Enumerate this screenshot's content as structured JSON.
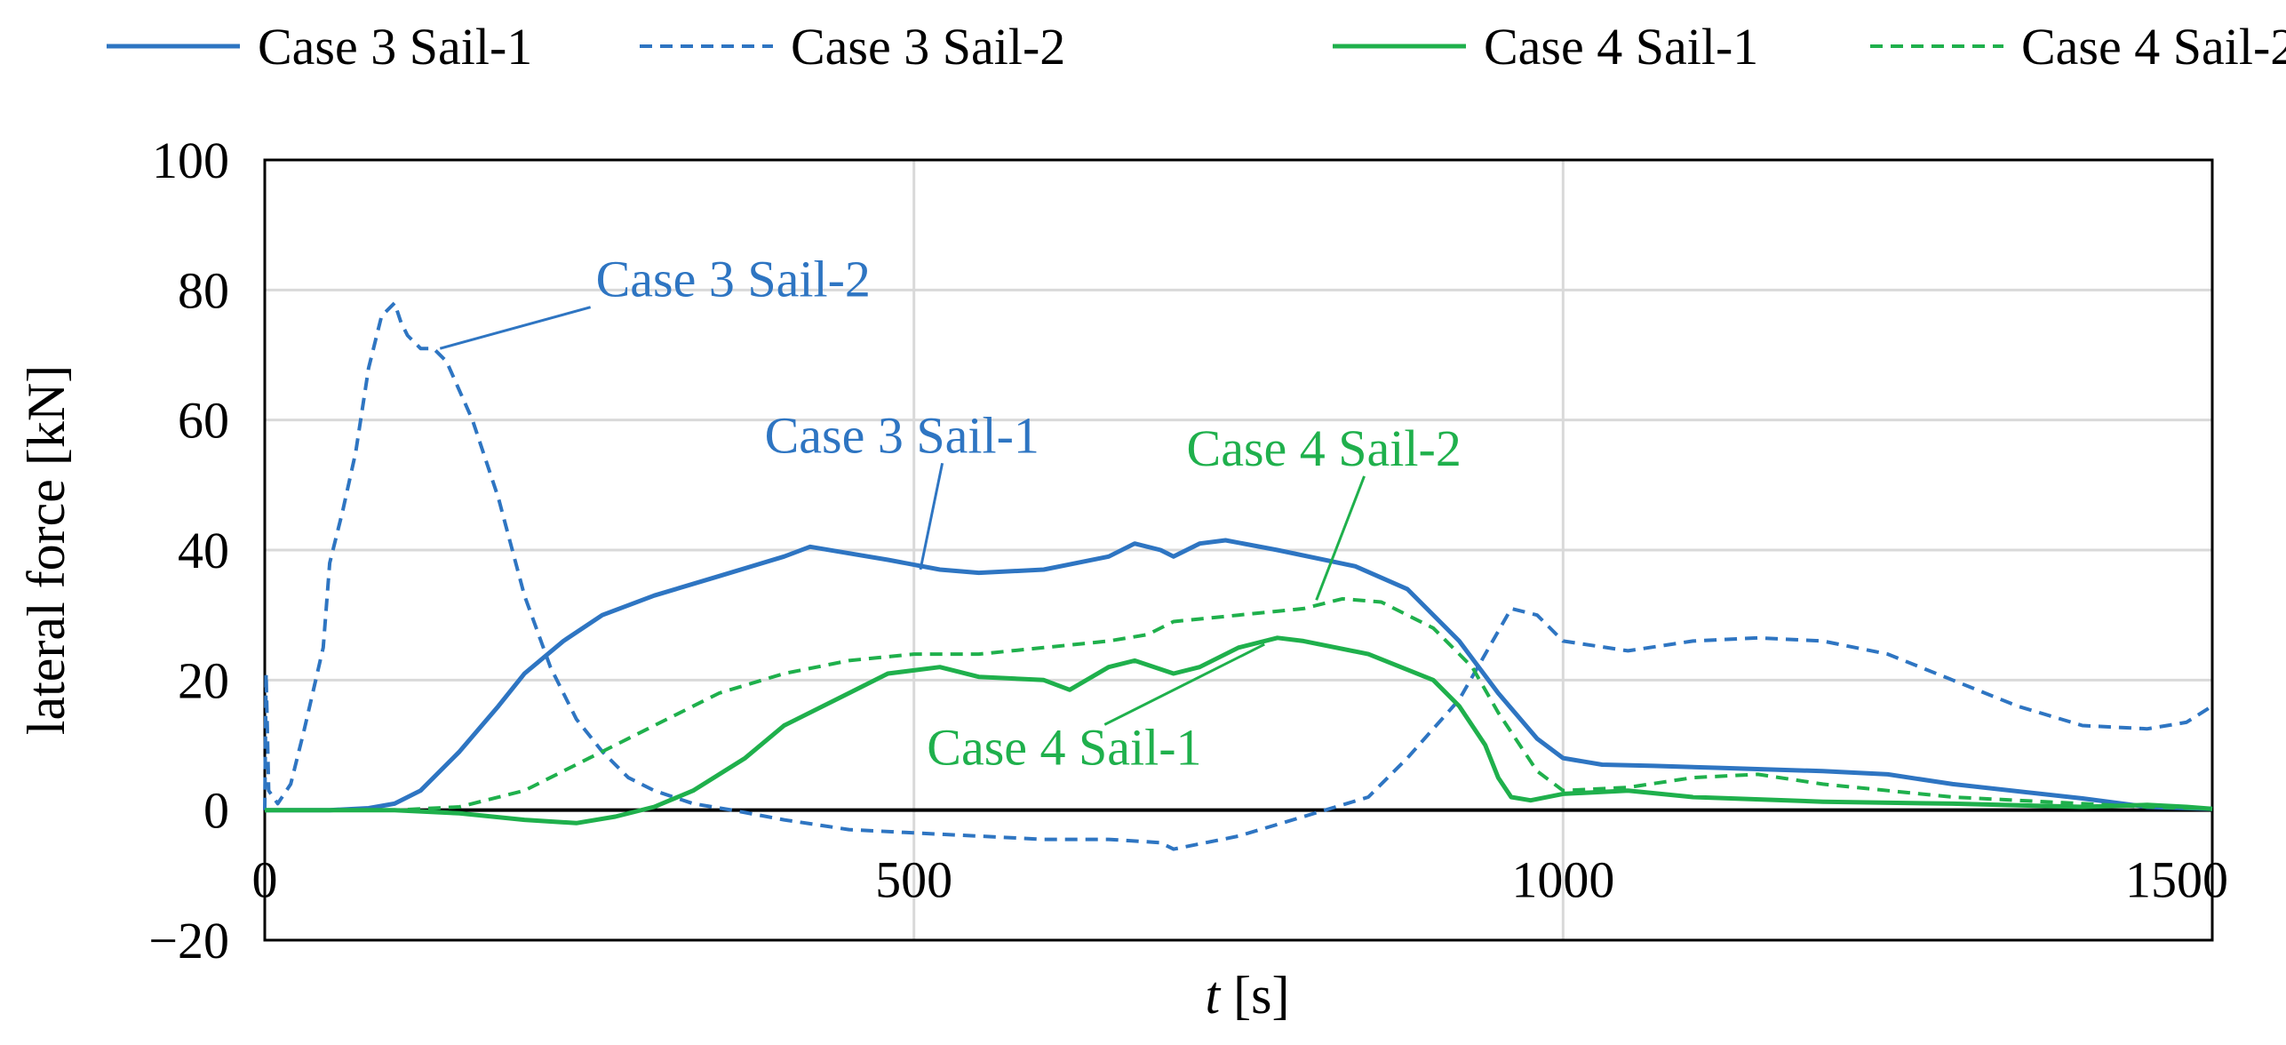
{
  "chart_data": {
    "type": "line",
    "title": "",
    "xlabel_italic": "t",
    "xlabel_rest": " [s]",
    "ylabel": "lateral force [kN]",
    "xlim": [
      0,
      1500
    ],
    "ylim": [
      -20,
      100
    ],
    "xticks": [
      0,
      500,
      1000,
      1500
    ],
    "yticks": [
      -20,
      0,
      20,
      40,
      60,
      80,
      100
    ],
    "xtick_labels": [
      "0",
      "500",
      "1000",
      "1500"
    ],
    "ytick_labels": [
      "−20",
      "0",
      "20",
      "40",
      "60",
      "80",
      "100"
    ],
    "grid": true,
    "legend_position": "top",
    "colors": {
      "blue": "#2e75c2",
      "green": "#1fb04c"
    },
    "series": [
      {
        "name": "Case 3 Sail-1",
        "color": "#2e75c2",
        "dash": "solid",
        "points": [
          [
            0,
            0
          ],
          [
            50,
            0
          ],
          [
            80,
            0.3
          ],
          [
            100,
            1
          ],
          [
            120,
            3
          ],
          [
            150,
            9
          ],
          [
            180,
            16
          ],
          [
            200,
            21
          ],
          [
            230,
            26
          ],
          [
            260,
            30
          ],
          [
            300,
            33
          ],
          [
            350,
            36
          ],
          [
            400,
            39
          ],
          [
            420,
            40.5
          ],
          [
            450,
            39.5
          ],
          [
            480,
            38.5
          ],
          [
            520,
            37
          ],
          [
            550,
            36.5
          ],
          [
            600,
            37
          ],
          [
            650,
            39
          ],
          [
            670,
            41
          ],
          [
            690,
            40
          ],
          [
            700,
            39
          ],
          [
            720,
            41
          ],
          [
            740,
            41.5
          ],
          [
            780,
            40
          ],
          [
            840,
            37.5
          ],
          [
            880,
            34
          ],
          [
            920,
            26
          ],
          [
            950,
            18
          ],
          [
            980,
            11
          ],
          [
            1000,
            8
          ],
          [
            1030,
            7
          ],
          [
            1070,
            6.8
          ],
          [
            1120,
            6.5
          ],
          [
            1200,
            6
          ],
          [
            1250,
            5.5
          ],
          [
            1300,
            4
          ],
          [
            1400,
            1.8
          ],
          [
            1450,
            0.5
          ],
          [
            1500,
            0.2
          ]
        ]
      },
      {
        "name": "Case 3 Sail-2",
        "color": "#2e75c2",
        "dash": "dashed",
        "points": [
          [
            0,
            0
          ],
          [
            1,
            21
          ],
          [
            3,
            3
          ],
          [
            10,
            1
          ],
          [
            20,
            4
          ],
          [
            30,
            12
          ],
          [
            45,
            25
          ],
          [
            50,
            38
          ],
          [
            60,
            46
          ],
          [
            70,
            55
          ],
          [
            80,
            68
          ],
          [
            90,
            76
          ],
          [
            100,
            78
          ],
          [
            105,
            75
          ],
          [
            110,
            73
          ],
          [
            120,
            71
          ],
          [
            130,
            71
          ],
          [
            140,
            69
          ],
          [
            160,
            60
          ],
          [
            180,
            48
          ],
          [
            200,
            33
          ],
          [
            220,
            22
          ],
          [
            240,
            14
          ],
          [
            260,
            9
          ],
          [
            280,
            5
          ],
          [
            300,
            3
          ],
          [
            330,
            1
          ],
          [
            360,
            0
          ],
          [
            400,
            -1.5
          ],
          [
            450,
            -3
          ],
          [
            500,
            -3.5
          ],
          [
            550,
            -4
          ],
          [
            600,
            -4.5
          ],
          [
            650,
            -4.5
          ],
          [
            690,
            -5
          ],
          [
            700,
            -6
          ],
          [
            750,
            -4
          ],
          [
            800,
            -1
          ],
          [
            850,
            2
          ],
          [
            880,
            8
          ],
          [
            920,
            17
          ],
          [
            940,
            24
          ],
          [
            960,
            31
          ],
          [
            980,
            30
          ],
          [
            1000,
            26
          ],
          [
            1050,
            24.5
          ],
          [
            1100,
            26
          ],
          [
            1150,
            26.5
          ],
          [
            1200,
            26
          ],
          [
            1250,
            24
          ],
          [
            1300,
            20
          ],
          [
            1350,
            16
          ],
          [
            1400,
            13
          ],
          [
            1450,
            12.5
          ],
          [
            1480,
            13.5
          ],
          [
            1500,
            16
          ]
        ]
      },
      {
        "name": "Case 4 Sail-1",
        "color": "#1fb04c",
        "dash": "solid",
        "points": [
          [
            0,
            0
          ],
          [
            100,
            0
          ],
          [
            150,
            -0.5
          ],
          [
            200,
            -1.5
          ],
          [
            240,
            -2
          ],
          [
            270,
            -1
          ],
          [
            300,
            0.5
          ],
          [
            330,
            3
          ],
          [
            370,
            8
          ],
          [
            400,
            13
          ],
          [
            450,
            18
          ],
          [
            480,
            21
          ],
          [
            520,
            22
          ],
          [
            550,
            20.5
          ],
          [
            600,
            20
          ],
          [
            620,
            18.5
          ],
          [
            650,
            22
          ],
          [
            670,
            23
          ],
          [
            700,
            21
          ],
          [
            720,
            22
          ],
          [
            750,
            25
          ],
          [
            780,
            26.5
          ],
          [
            800,
            26
          ],
          [
            850,
            24
          ],
          [
            900,
            20
          ],
          [
            920,
            16
          ],
          [
            940,
            10
          ],
          [
            950,
            5
          ],
          [
            960,
            2
          ],
          [
            975,
            1.5
          ],
          [
            1000,
            2.5
          ],
          [
            1050,
            3
          ],
          [
            1100,
            2
          ],
          [
            1200,
            1.3
          ],
          [
            1300,
            1
          ],
          [
            1400,
            0.5
          ],
          [
            1450,
            0.8
          ],
          [
            1480,
            0.5
          ],
          [
            1500,
            0.2
          ]
        ]
      },
      {
        "name": "Case 4 Sail-2",
        "color": "#1fb04c",
        "dash": "dashed",
        "points": [
          [
            0,
            0
          ],
          [
            100,
            0
          ],
          [
            150,
            0.5
          ],
          [
            200,
            3
          ],
          [
            250,
            8
          ],
          [
            300,
            13
          ],
          [
            350,
            18
          ],
          [
            400,
            21
          ],
          [
            450,
            23
          ],
          [
            500,
            24
          ],
          [
            550,
            24
          ],
          [
            600,
            25
          ],
          [
            650,
            26
          ],
          [
            680,
            27
          ],
          [
            700,
            29
          ],
          [
            750,
            30
          ],
          [
            800,
            31
          ],
          [
            830,
            32.5
          ],
          [
            860,
            32
          ],
          [
            900,
            28
          ],
          [
            930,
            22
          ],
          [
            950,
            15
          ],
          [
            980,
            6
          ],
          [
            1000,
            3
          ],
          [
            1050,
            3.5
          ],
          [
            1100,
            5
          ],
          [
            1150,
            5.5
          ],
          [
            1200,
            4
          ],
          [
            1300,
            2
          ],
          [
            1400,
            1
          ],
          [
            1450,
            0.5
          ],
          [
            1500,
            0.2
          ]
        ]
      }
    ],
    "annotations": [
      {
        "text": "Case 3 Sail-2",
        "series": "Case 3 Sail-2",
        "color": "#2e75c2",
        "point": [
          135,
          71
        ],
        "label_at": [
          255,
          79
        ]
      },
      {
        "text": "Case 3 Sail-1",
        "series": "Case 3 Sail-1",
        "color": "#2e75c2",
        "point": [
          505,
          37
        ],
        "label_at": [
          385,
          55
        ]
      },
      {
        "text": "Case 4 Sail-2",
        "series": "Case 4 Sail-2",
        "color": "#1fb04c",
        "point": [
          810,
          32.3
        ],
        "label_at": [
          710,
          53
        ]
      },
      {
        "text": "Case 4 Sail-1",
        "series": "Case 4 Sail-1",
        "color": "#1fb04c",
        "point": [
          770,
          25.5
        ],
        "label_at": [
          510,
          7
        ]
      }
    ]
  }
}
